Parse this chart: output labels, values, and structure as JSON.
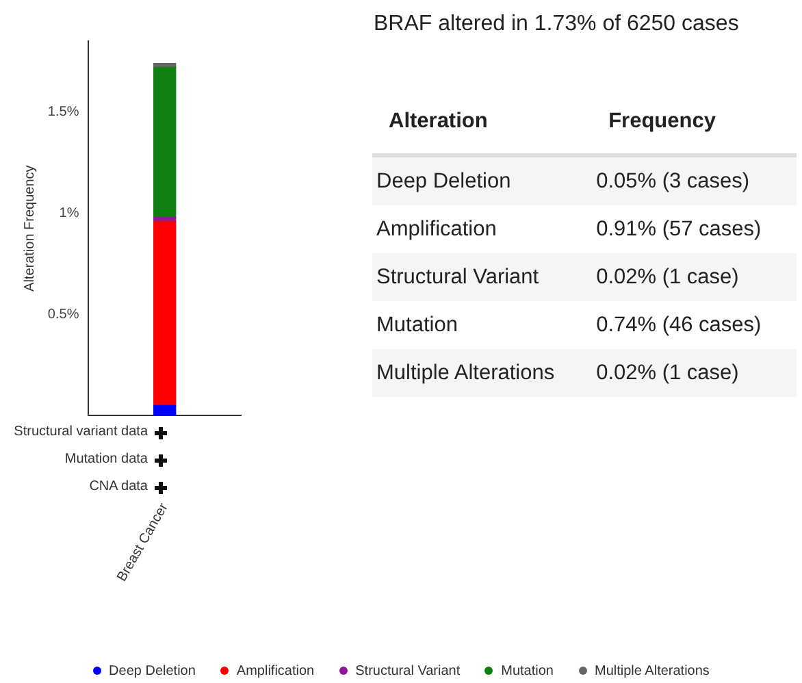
{
  "chart_data": {
    "type": "bar",
    "title": "BRAF altered in 1.73% of 6250 cases",
    "ylabel": "Alteration Frequency",
    "categories": [
      "Breast Cancer"
    ],
    "stacked": true,
    "series": [
      {
        "name": "Deep Deletion",
        "color": "#0000ff",
        "values": [
          0.05
        ]
      },
      {
        "name": "Amplification",
        "color": "#ff0000",
        "values": [
          0.91
        ]
      },
      {
        "name": "Structural Variant",
        "color": "#8b1a9b",
        "values": [
          0.02
        ]
      },
      {
        "name": "Mutation",
        "color": "#108010",
        "values": [
          0.74
        ]
      },
      {
        "name": "Multiple Alterations",
        "color": "#666666",
        "values": [
          0.02
        ]
      }
    ],
    "ylim": [
      0,
      1.85
    ],
    "yticks": [
      {
        "value": 0.5,
        "label": "0.5%"
      },
      {
        "value": 1,
        "label": "1%"
      },
      {
        "value": 1.5,
        "label": "1.5%"
      }
    ],
    "grid": false,
    "legend": "bottom",
    "marker": "circle",
    "annotations": [
      "Structural variant data",
      "Mutation data",
      "CNA data",
      "Alteration",
      "Frequency",
      "0.05% (3 cases)",
      "0.91% (57 cases)",
      "0.02% (1 case)",
      "0.74% (46 cases)",
      "0.02% (1 case)"
    ]
  }
}
